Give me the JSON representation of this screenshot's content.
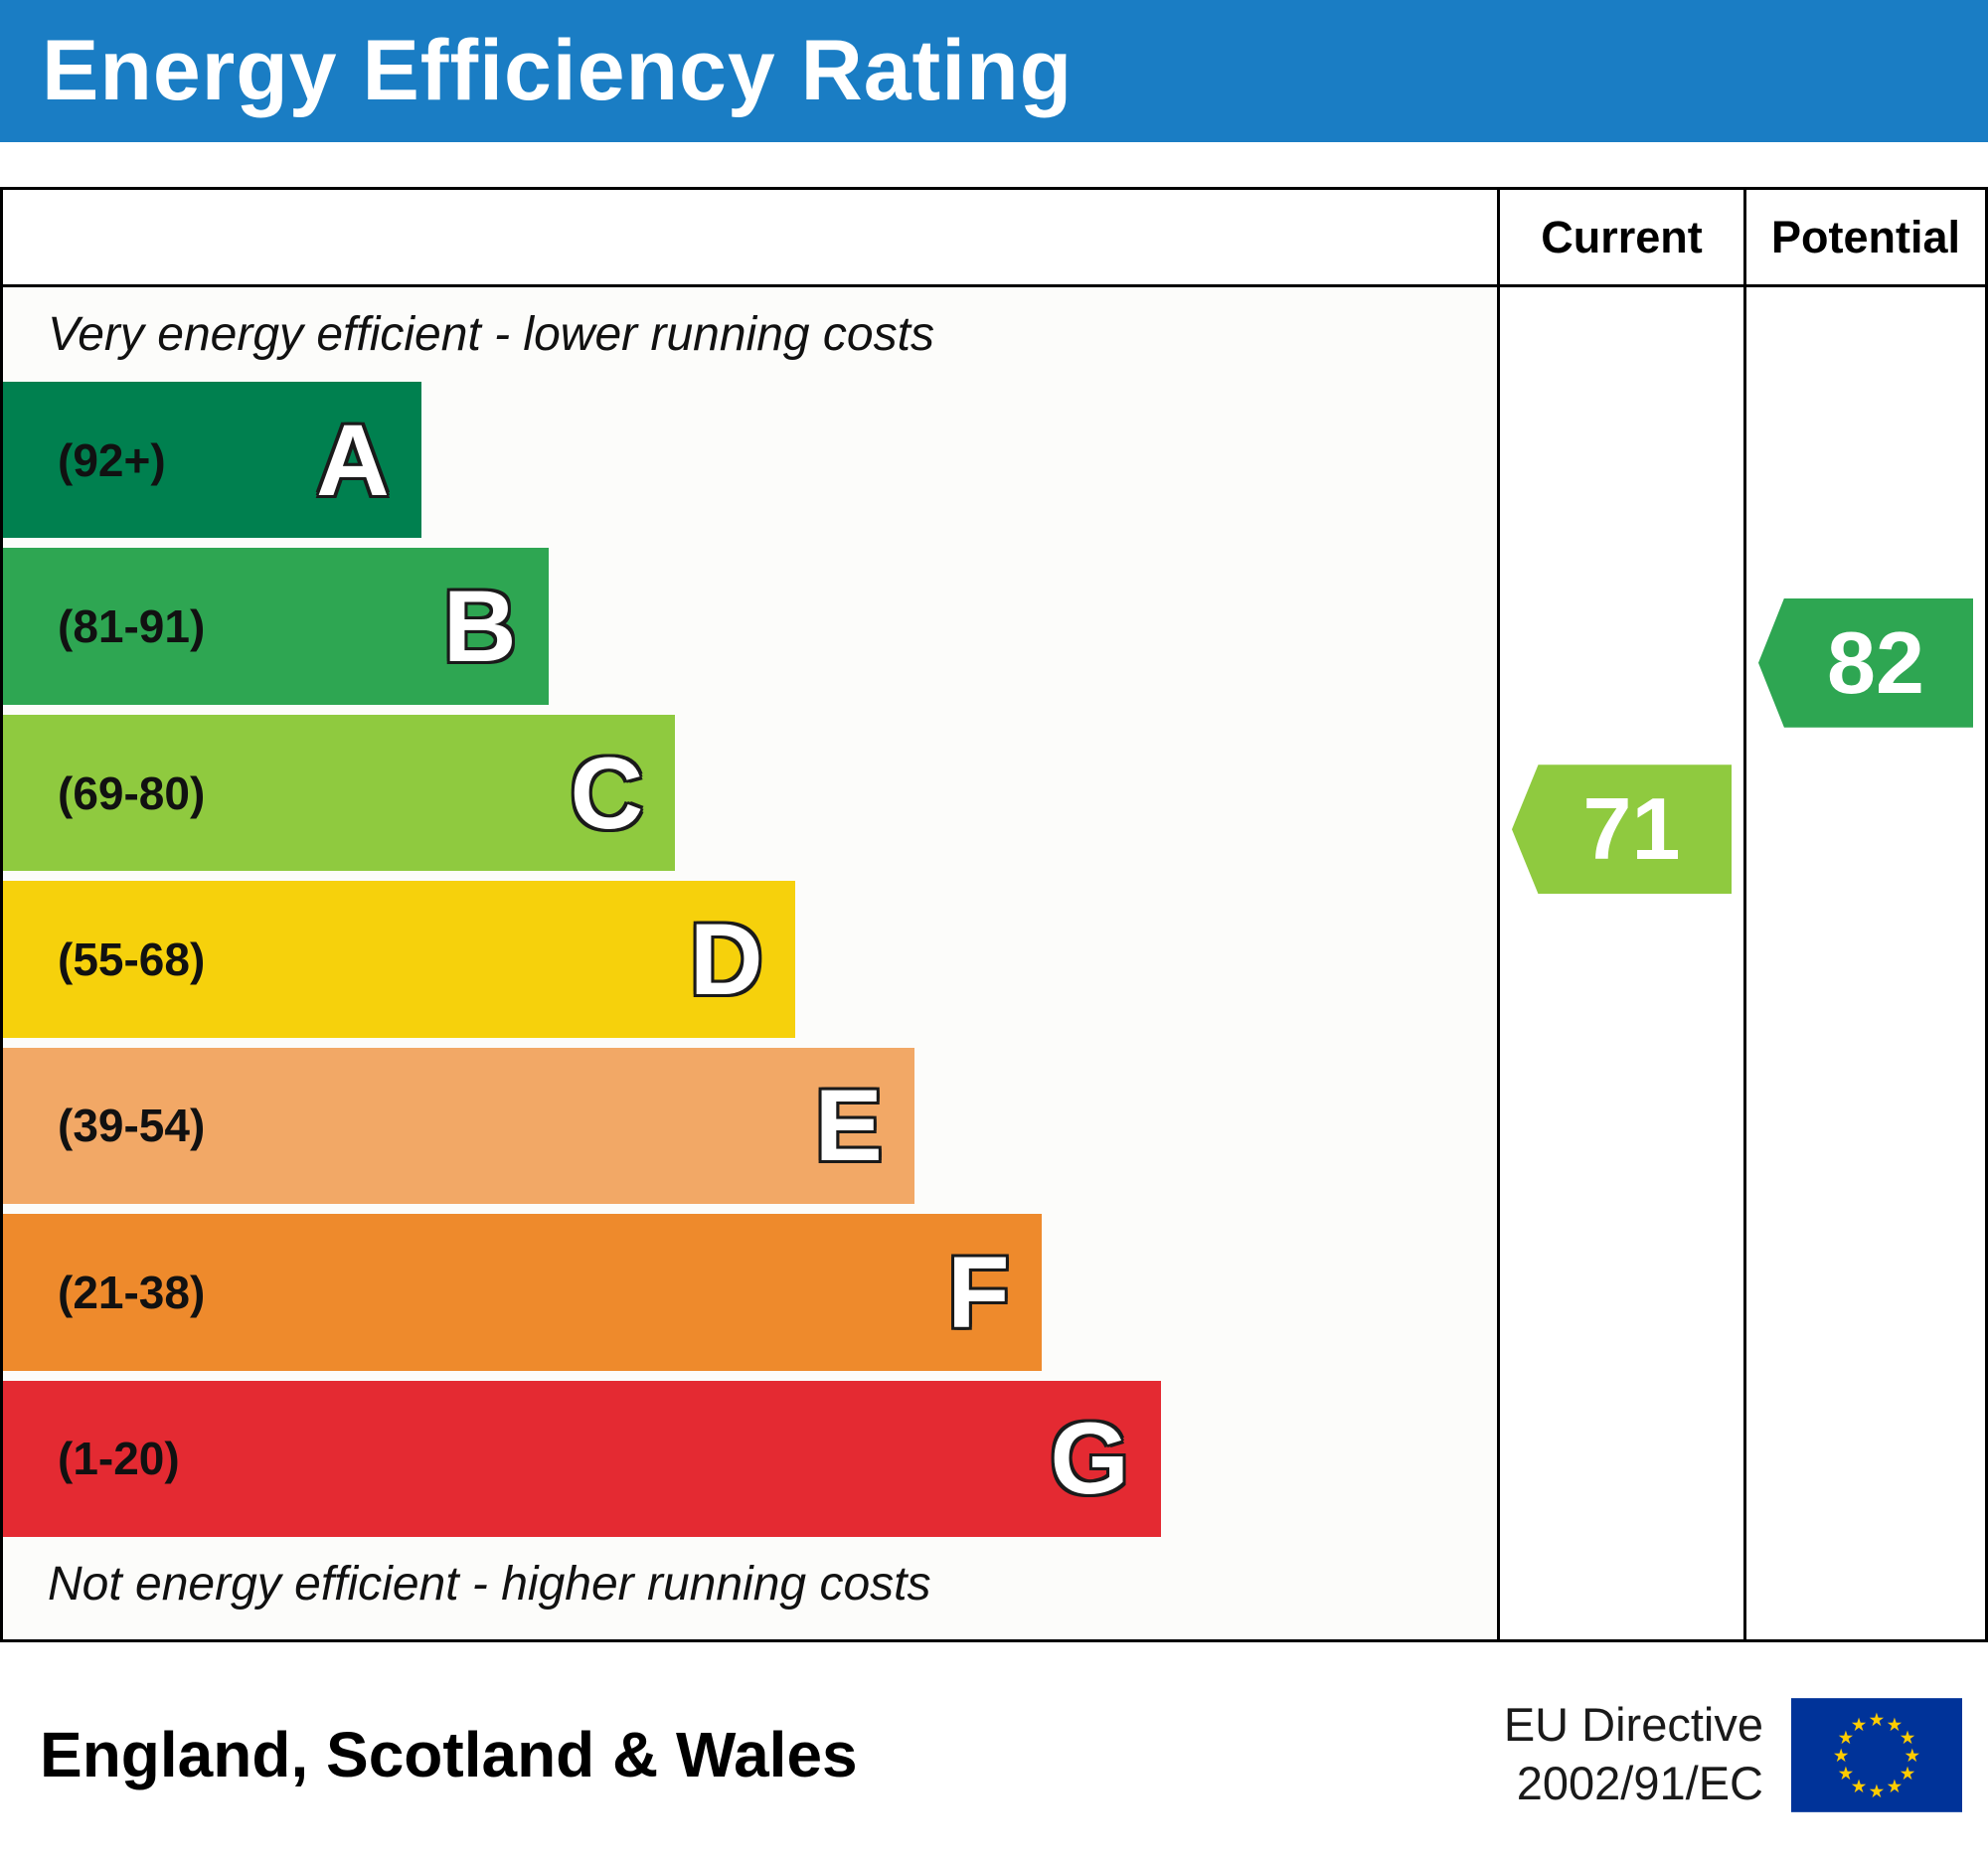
{
  "title": "Energy Efficiency Rating",
  "columns": {
    "current": "Current",
    "potential": "Potential"
  },
  "notes": {
    "top": "Very energy efficient - lower running costs",
    "bottom": "Not energy efficient - higher running costs"
  },
  "chart_data": {
    "type": "bar",
    "title": "Energy Efficiency Rating",
    "bands": [
      {
        "letter": "A",
        "range": "(92+)",
        "min": 92,
        "max": 100,
        "color": "#00804f",
        "width_pct": 28
      },
      {
        "letter": "B",
        "range": "(81-91)",
        "min": 81,
        "max": 91,
        "color": "#2ea652",
        "width_pct": 36.5
      },
      {
        "letter": "C",
        "range": "(69-80)",
        "min": 69,
        "max": 80,
        "color": "#8fca3f",
        "width_pct": 45
      },
      {
        "letter": "D",
        "range": "(55-68)",
        "min": 55,
        "max": 68,
        "color": "#f6d10c",
        "width_pct": 53
      },
      {
        "letter": "E",
        "range": "(39-54)",
        "min": 39,
        "max": 54,
        "color": "#f2a866",
        "width_pct": 61
      },
      {
        "letter": "F",
        "range": "(21-38)",
        "min": 21,
        "max": 38,
        "color": "#ee8a2c",
        "width_pct": 69.5
      },
      {
        "letter": "G",
        "range": "(1-20)",
        "min": 1,
        "max": 20,
        "color": "#e42a32",
        "width_pct": 77.5
      }
    ],
    "markers": {
      "current": {
        "value": 71,
        "band": "C",
        "color": "#8fca3f"
      },
      "potential": {
        "value": 82,
        "band": "B",
        "color": "#2ea652"
      }
    }
  },
  "footer": {
    "region": "England, Scotland & Wales",
    "directive_line1": "EU Directive",
    "directive_line2": "2002/91/EC"
  },
  "theme": {
    "header_bg": "#1a7dc4",
    "header_text": "#ffffff",
    "eu_flag_blue": "#003399",
    "eu_flag_star": "#ffcc00"
  }
}
